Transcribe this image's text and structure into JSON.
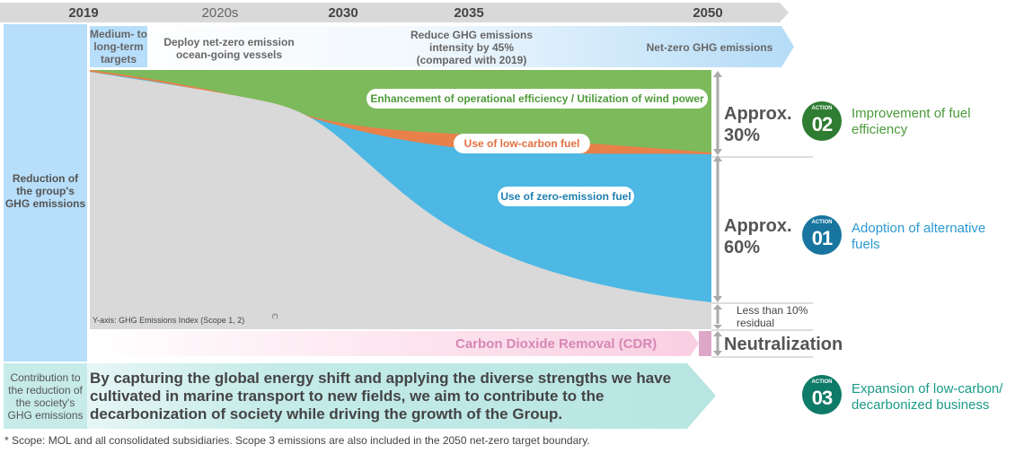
{
  "timeline": {
    "years": [
      "2019",
      "2020s",
      "2030",
      "2035",
      "2050"
    ]
  },
  "targets": {
    "label": "Medium- to long-term targets",
    "items": [
      "Deploy net-zero emission ocean-going vessels",
      "Reduce GHG emissions intensity by 45% (compared with 2019)",
      "Net-zero GHG emissions"
    ]
  },
  "left": {
    "group": "Reduction of the group's GHG emissions",
    "society": "Contribution to the reduction of the society's GHG emissions"
  },
  "chart": {
    "pills": {
      "green": "Enhancement of operational efficiency / Utilization of wind power",
      "orange": "Use of low-carbon fuel",
      "blue": "Use of zero-emission fuel"
    },
    "yaxis_note": "Y-axis: GHG Emissions Index (Scope 1, 2)",
    "yaxis_note_sup": "(*)",
    "colors": {
      "green": "#7dba5c",
      "orange": "#e8804a",
      "blue": "#4db8e4",
      "gray": "#d9d9d9"
    }
  },
  "shares": {
    "approx30": "Approx. 30%",
    "approx60": "Approx. 60%",
    "residual": "Less than 10% residual",
    "neutralization": "Neutralization"
  },
  "cdr": "Carbon Dioxide Removal (CDR)",
  "society_text": "By capturing the global energy shift and applying the diverse strengths we have cultivated in marine transport to new fields, we aim to contribute to the decarbonization of society while driving the growth of the Group.",
  "actions": [
    {
      "tag": "ACTION",
      "num": "02",
      "label": "Improvement of fuel efficiency",
      "color": "#2e7d32",
      "text_color": "#4a9a3a"
    },
    {
      "tag": "ACTION",
      "num": "01",
      "label": "Adoption of alternative fuels",
      "color": "#17759f",
      "text_color": "#2a9ad0"
    },
    {
      "tag": "ACTION",
      "num": "03",
      "label": "Expansion of low-carbon/ decarbonized business",
      "color": "#0e7a68",
      "text_color": "#1a9a88"
    }
  ],
  "footnote": "* Scope: MOL and all consolidated subsidiaries. Scope 3 emissions are also included in the 2050 net-zero target boundary."
}
